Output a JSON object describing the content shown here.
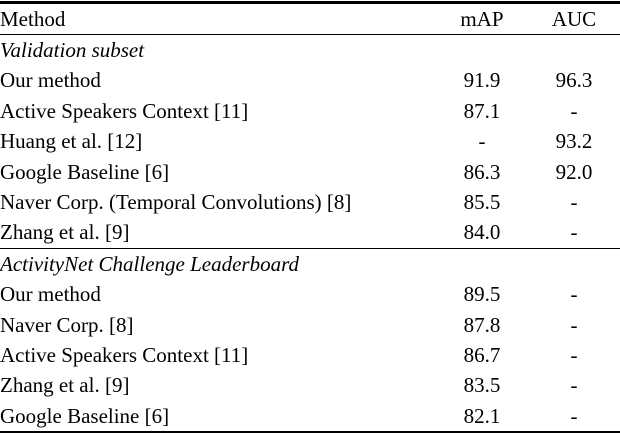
{
  "table": {
    "columns": [
      "Method",
      "mAP",
      "AUC"
    ],
    "sections": [
      {
        "title": "Validation subset",
        "rows": [
          {
            "method": "Our method",
            "map": "91.9",
            "auc": "96.3",
            "bold": true
          },
          {
            "method": "Active Speakers Context [11]",
            "map": "87.1",
            "auc": "-",
            "bold": false
          },
          {
            "method": "Huang et al. [12]",
            "map": "-",
            "auc": "93.2",
            "bold": false
          },
          {
            "method": "Google Baseline [6]",
            "map": "86.3",
            "auc": "92.0",
            "bold": false
          },
          {
            "method": "Naver Corp. (Temporal Convolutions) [8]",
            "map": "85.5",
            "auc": "-",
            "bold": false
          },
          {
            "method": "Zhang et al. [9]",
            "map": "84.0",
            "auc": "-",
            "bold": false
          }
        ]
      },
      {
        "title": "ActivityNet Challenge Leaderboard",
        "rows": [
          {
            "method": "Our method",
            "map": "89.5",
            "auc": "-",
            "bold": true
          },
          {
            "method": "Naver Corp. [8]",
            "map": "87.8",
            "auc": "-",
            "bold": false
          },
          {
            "method": "Active Speakers Context [11]",
            "map": "86.7",
            "auc": "-",
            "bold": false
          },
          {
            "method": "Zhang et al. [9]",
            "map": "83.5",
            "auc": "-",
            "bold": false
          },
          {
            "method": "Google Baseline [6]",
            "map": "82.1",
            "auc": "-",
            "bold": false
          }
        ]
      }
    ]
  }
}
